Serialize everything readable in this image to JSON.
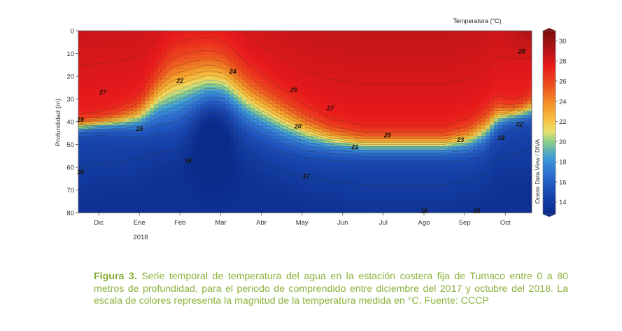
{
  "chart_data": {
    "type": "heatmap",
    "title": "",
    "ylabel": "Profundidad (m)",
    "xlabel": "",
    "colorbar_title": "Temperatura (°C)",
    "side_label": "Ocean Data View / DIVA",
    "year_label": "2018",
    "months": [
      "Dic",
      "Ene",
      "Feb",
      "Mar",
      "Abr",
      "May",
      "Jun",
      "Jul",
      "Ago",
      "Sep",
      "Oct"
    ],
    "month_x": [
      0.5,
      1.5,
      2.5,
      3.5,
      4.5,
      5.5,
      6.5,
      7.5,
      8.5,
      9.5,
      10.5
    ],
    "xlim": [
      0,
      11.15
    ],
    "ylim": [
      80,
      0
    ],
    "y_ticks": [
      0,
      10,
      20,
      30,
      40,
      50,
      60,
      70,
      80
    ],
    "colorbar_ticks": [
      14,
      16,
      18,
      20,
      22,
      24,
      26,
      28,
      30
    ],
    "colorbar_range": [
      12.8,
      31
    ],
    "colors": {
      "stops": [
        "#0b2a8a",
        "#1a4bb5",
        "#2e6fd0",
        "#3d9bd8",
        "#8ed08a",
        "#e8e070",
        "#f7c545",
        "#f39a2a",
        "#ee5320",
        "#e8191c",
        "#7a0f0f"
      ],
      "stop_values": [
        12.8,
        15,
        16.8,
        18.4,
        20,
        21,
        22,
        23.5,
        25.5,
        27.5,
        31
      ],
      "contour": "#3d2a10"
    },
    "thermocline_x": [
      0,
      0.5,
      1,
      1.5,
      2,
      2.3,
      2.7,
      3.2,
      3.6,
      4.2,
      5,
      5.6,
      6.2,
      7,
      7.6,
      8.2,
      9,
      9.6,
      10,
      10.3,
      10.6,
      10.9,
      11.15
    ],
    "thermocline_depth": [
      42,
      41,
      40,
      38,
      30,
      27,
      25,
      23,
      24,
      32,
      40,
      45,
      48,
      50,
      50,
      50,
      50,
      48,
      44,
      38,
      37,
      36,
      34
    ],
    "thermocline_width": [
      3,
      3,
      4,
      6,
      12,
      16,
      16,
      15,
      14,
      12,
      10,
      8,
      6,
      5,
      5,
      5,
      5,
      6,
      7,
      6,
      4,
      4,
      5
    ],
    "upwelling_lobe": {
      "center_x": 3.3,
      "depth": 42,
      "width_x": 0.55,
      "strength": 2.4
    },
    "contour_labels": [
      {
        "text": "27",
        "x": 0.6,
        "y": 27
      },
      {
        "text": "19",
        "x": 0.05,
        "y": 39
      },
      {
        "text": "15",
        "x": 1.5,
        "y": 43
      },
      {
        "text": "16",
        "x": 0.05,
        "y": 62
      },
      {
        "text": "22",
        "x": 2.5,
        "y": 22
      },
      {
        "text": "24",
        "x": 3.8,
        "y": 18
      },
      {
        "text": "26",
        "x": 5.3,
        "y": 26
      },
      {
        "text": "27",
        "x": 6.2,
        "y": 34
      },
      {
        "text": "16",
        "x": 2.7,
        "y": 57
      },
      {
        "text": "20",
        "x": 5.4,
        "y": 42
      },
      {
        "text": "21",
        "x": 6.8,
        "y": 51
      },
      {
        "text": "25",
        "x": 7.6,
        "y": 46
      },
      {
        "text": "17",
        "x": 5.6,
        "y": 64
      },
      {
        "text": "23",
        "x": 9.4,
        "y": 48
      },
      {
        "text": "18",
        "x": 10.4,
        "y": 47
      },
      {
        "text": "22",
        "x": 10.85,
        "y": 41
      },
      {
        "text": "28",
        "x": 10.9,
        "y": 9
      },
      {
        "text": "15",
        "x": 8.5,
        "y": 79
      },
      {
        "text": "15",
        "x": 9.8,
        "y": 79
      }
    ]
  },
  "caption": {
    "lead": "Figura 3.",
    "text": " Serie temporal de temperatura del agua en la estación costera fija de Tumaco entre 0 a 80 metros de profundidad, para el periodo de comprendido entre diciembre del 2017 y octubre del 2018. La escala de colores representa la magnitud de la temperatura medida en °C. Fuente: CCCP"
  }
}
